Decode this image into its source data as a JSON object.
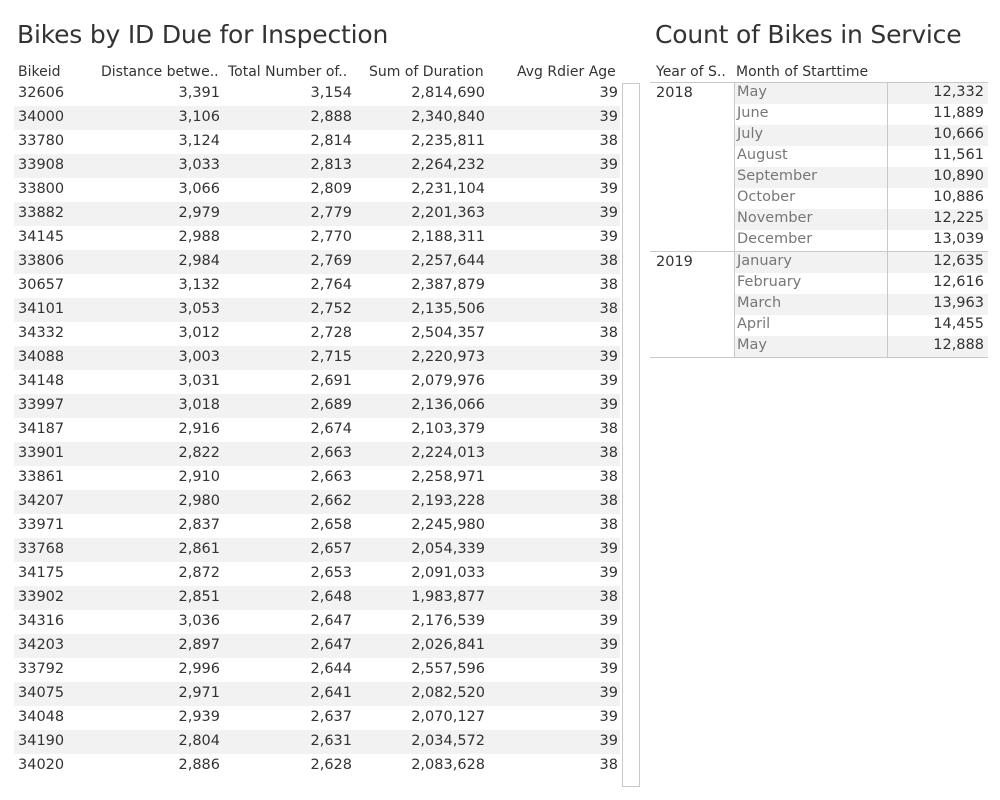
{
  "left_title": "Bikes by ID Due for Inspection",
  "right_title": "Count of Bikes in Service",
  "bikes_table": {
    "headers": {
      "bikeid": "Bikeid",
      "distance": "Distance betwe..",
      "total": "Total Number of..",
      "sum_duration": "Sum of Duration",
      "avg_age": "Avg Rdier Age"
    },
    "rows": [
      {
        "id": "32606",
        "dist": "3,391",
        "total": "3,154",
        "sum": "2,814,690",
        "age": "39"
      },
      {
        "id": "34000",
        "dist": "3,106",
        "total": "2,888",
        "sum": "2,340,840",
        "age": "39"
      },
      {
        "id": "33780",
        "dist": "3,124",
        "total": "2,814",
        "sum": "2,235,811",
        "age": "38"
      },
      {
        "id": "33908",
        "dist": "3,033",
        "total": "2,813",
        "sum": "2,264,232",
        "age": "39"
      },
      {
        "id": "33800",
        "dist": "3,066",
        "total": "2,809",
        "sum": "2,231,104",
        "age": "39"
      },
      {
        "id": "33882",
        "dist": "2,979",
        "total": "2,779",
        "sum": "2,201,363",
        "age": "39"
      },
      {
        "id": "34145",
        "dist": "2,988",
        "total": "2,770",
        "sum": "2,188,311",
        "age": "39"
      },
      {
        "id": "33806",
        "dist": "2,984",
        "total": "2,769",
        "sum": "2,257,644",
        "age": "38"
      },
      {
        "id": "30657",
        "dist": "3,132",
        "total": "2,764",
        "sum": "2,387,879",
        "age": "38"
      },
      {
        "id": "34101",
        "dist": "3,053",
        "total": "2,752",
        "sum": "2,135,506",
        "age": "38"
      },
      {
        "id": "34332",
        "dist": "3,012",
        "total": "2,728",
        "sum": "2,504,357",
        "age": "38"
      },
      {
        "id": "34088",
        "dist": "3,003",
        "total": "2,715",
        "sum": "2,220,973",
        "age": "39"
      },
      {
        "id": "34148",
        "dist": "3,031",
        "total": "2,691",
        "sum": "2,079,976",
        "age": "39"
      },
      {
        "id": "33997",
        "dist": "3,018",
        "total": "2,689",
        "sum": "2,136,066",
        "age": "39"
      },
      {
        "id": "34187",
        "dist": "2,916",
        "total": "2,674",
        "sum": "2,103,379",
        "age": "38"
      },
      {
        "id": "33901",
        "dist": "2,822",
        "total": "2,663",
        "sum": "2,224,013",
        "age": "38"
      },
      {
        "id": "33861",
        "dist": "2,910",
        "total": "2,663",
        "sum": "2,258,971",
        "age": "38"
      },
      {
        "id": "34207",
        "dist": "2,980",
        "total": "2,662",
        "sum": "2,193,228",
        "age": "38"
      },
      {
        "id": "33971",
        "dist": "2,837",
        "total": "2,658",
        "sum": "2,245,980",
        "age": "38"
      },
      {
        "id": "33768",
        "dist": "2,861",
        "total": "2,657",
        "sum": "2,054,339",
        "age": "39"
      },
      {
        "id": "34175",
        "dist": "2,872",
        "total": "2,653",
        "sum": "2,091,033",
        "age": "39"
      },
      {
        "id": "33902",
        "dist": "2,851",
        "total": "2,648",
        "sum": "1,983,877",
        "age": "38"
      },
      {
        "id": "34316",
        "dist": "3,036",
        "total": "2,647",
        "sum": "2,176,539",
        "age": "39"
      },
      {
        "id": "34203",
        "dist": "2,897",
        "total": "2,647",
        "sum": "2,026,841",
        "age": "39"
      },
      {
        "id": "33792",
        "dist": "2,996",
        "total": "2,644",
        "sum": "2,557,596",
        "age": "39"
      },
      {
        "id": "34075",
        "dist": "2,971",
        "total": "2,641",
        "sum": "2,082,520",
        "age": "39"
      },
      {
        "id": "34048",
        "dist": "2,939",
        "total": "2,637",
        "sum": "2,070,127",
        "age": "39"
      },
      {
        "id": "34190",
        "dist": "2,804",
        "total": "2,631",
        "sum": "2,034,572",
        "age": "39"
      },
      {
        "id": "34020",
        "dist": "2,886",
        "total": "2,628",
        "sum": "2,083,628",
        "age": "38"
      }
    ]
  },
  "service_table": {
    "headers": {
      "year": "Year of S..",
      "month": "Month of Starttime"
    },
    "groups": [
      {
        "year": "2018",
        "months": [
          {
            "month": "May",
            "count": "12,332"
          },
          {
            "month": "June",
            "count": "11,889"
          },
          {
            "month": "July",
            "count": "10,666"
          },
          {
            "month": "August",
            "count": "11,561"
          },
          {
            "month": "September",
            "count": "10,890"
          },
          {
            "month": "October",
            "count": "10,886"
          },
          {
            "month": "November",
            "count": "12,225"
          },
          {
            "month": "December",
            "count": "13,039"
          }
        ]
      },
      {
        "year": "2019",
        "months": [
          {
            "month": "January",
            "count": "12,635"
          },
          {
            "month": "February",
            "count": "12,616"
          },
          {
            "month": "March",
            "count": "13,963"
          },
          {
            "month": "April",
            "count": "14,455"
          },
          {
            "month": "May",
            "count": "12,888"
          }
        ]
      }
    ]
  }
}
